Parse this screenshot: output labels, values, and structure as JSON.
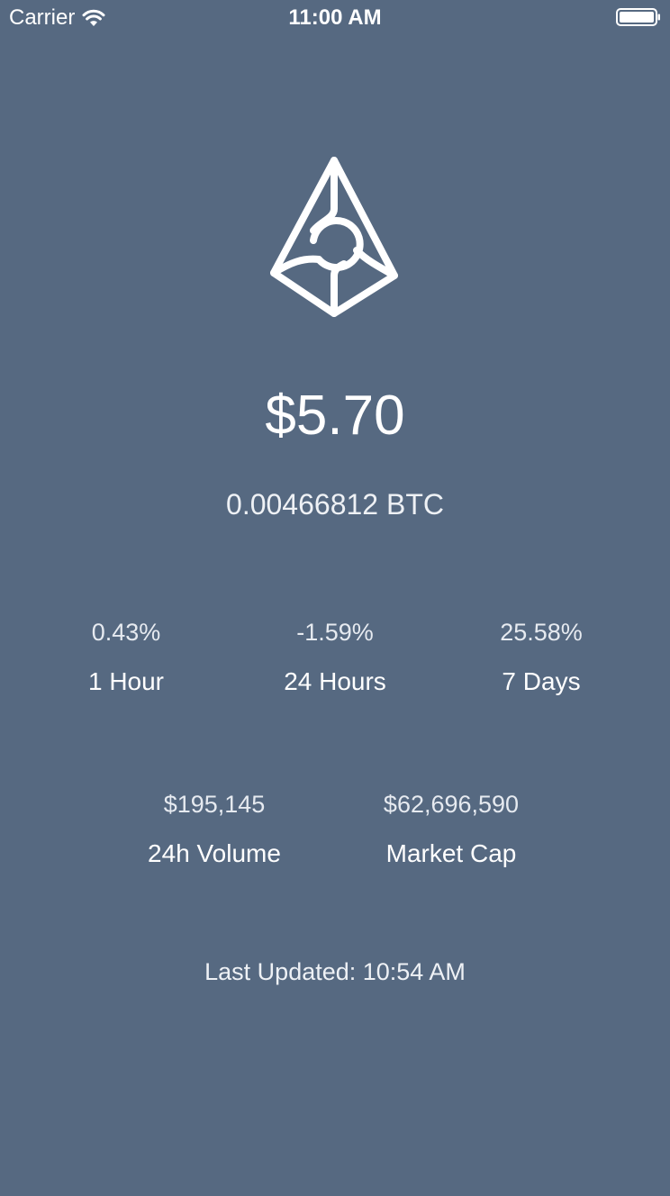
{
  "status_bar": {
    "carrier": "Carrier",
    "time": "11:00 AM",
    "wifi_icon": "wifi-icon",
    "battery_icon": "battery-icon"
  },
  "logo": {
    "icon": "augur-logo-icon"
  },
  "price": {
    "usd": "$5.70",
    "btc": "0.00466812 BTC"
  },
  "changes": [
    {
      "value": "0.43%",
      "label": "1 Hour"
    },
    {
      "value": "-1.59%",
      "label": "24 Hours"
    },
    {
      "value": "25.58%",
      "label": "7 Days"
    }
  ],
  "market": {
    "volume": {
      "value": "$195,145",
      "label": "24h Volume"
    },
    "market_cap": {
      "value": "$62,696,590",
      "label": "Market Cap"
    }
  },
  "last_updated": "Last Updated: 10:54 AM",
  "colors": {
    "background": "#566981",
    "text": "#ffffff"
  }
}
